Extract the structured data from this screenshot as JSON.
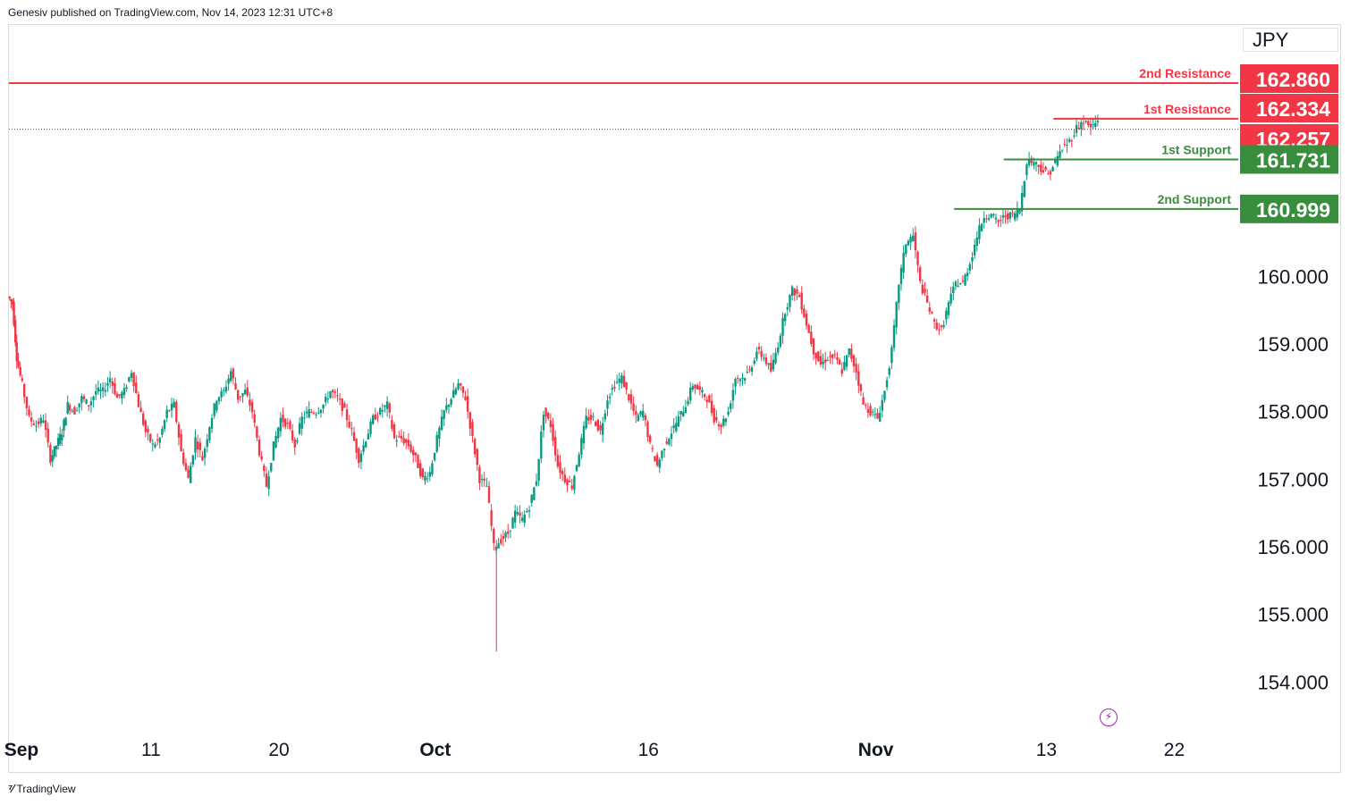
{
  "header": {
    "published": "Genesiv published on TradingView.com, Nov 14, 2023 12:31 UTC+8"
  },
  "currency": "JPY",
  "footer": {
    "brand": "TradingView",
    "logo_icon": "tradingview-logo-icon"
  },
  "colors": {
    "resistance": "#f23645",
    "support": "#388e3c",
    "bull": "#089981",
    "bear": "#f23645",
    "axis_text": "#131722"
  },
  "chart_data": {
    "type": "candlestick",
    "title": "",
    "y_axis": {
      "ticks": [
        154.0,
        155.0,
        156.0,
        157.0,
        158.0,
        159.0,
        160.0
      ],
      "ylim": [
        153.25,
        163.72
      ],
      "tick_labels": [
        "154.000",
        "155.000",
        "156.000",
        "157.000",
        "158.000",
        "159.000",
        "160.000"
      ]
    },
    "x_axis": {
      "labels": [
        {
          "text": "Sep",
          "bold": true,
          "day": 0
        },
        {
          "text": "11",
          "bold": false,
          "day": 10
        },
        {
          "text": "20",
          "bold": false,
          "day": 19
        },
        {
          "text": "Oct",
          "bold": true,
          "day": 30
        },
        {
          "text": "16",
          "bold": false,
          "day": 45
        },
        {
          "text": "Nov",
          "bold": true,
          "day": 61
        },
        {
          "text": "13",
          "bold": false,
          "day": 73
        },
        {
          "text": "22",
          "bold": false,
          "day": 82
        }
      ],
      "xlim_days": [
        0,
        86.5
      ]
    },
    "levels": [
      {
        "name": "2nd Resistance",
        "value": 162.86,
        "label": "162.860",
        "kind": "resistance",
        "full_width": true
      },
      {
        "name": "1st Resistance",
        "value": 162.334,
        "label": "162.334",
        "kind": "resistance",
        "start_day": 73.5
      },
      {
        "name": "1st Support",
        "value": 161.731,
        "label": "161.731",
        "kind": "support",
        "start_day": 70.0
      },
      {
        "name": "2nd Support",
        "value": 160.999,
        "label": "160.999",
        "kind": "support",
        "start_day": 66.5
      }
    ],
    "current_price": {
      "value": 162.257,
      "label": "162.257"
    },
    "price_path": [
      [
        0.0,
        159.7
      ],
      [
        0.3,
        159.6
      ],
      [
        0.6,
        158.8
      ],
      [
        1.0,
        158.4
      ],
      [
        1.5,
        157.9
      ],
      [
        2.0,
        157.8
      ],
      [
        2.5,
        157.9
      ],
      [
        3.0,
        157.3
      ],
      [
        3.4,
        157.5
      ],
      [
        3.8,
        157.7
      ],
      [
        4.2,
        158.1
      ],
      [
        4.7,
        158.0
      ],
      [
        5.2,
        158.2
      ],
      [
        5.7,
        158.1
      ],
      [
        6.2,
        158.3
      ],
      [
        6.7,
        158.3
      ],
      [
        7.2,
        158.5
      ],
      [
        7.7,
        158.2
      ],
      [
        8.2,
        158.3
      ],
      [
        8.7,
        158.6
      ],
      [
        9.2,
        158.1
      ],
      [
        9.7,
        157.7
      ],
      [
        10.2,
        157.5
      ],
      [
        10.7,
        157.6
      ],
      [
        11.2,
        158.0
      ],
      [
        11.7,
        158.1
      ],
      [
        12.2,
        157.4
      ],
      [
        12.7,
        157.0
      ],
      [
        13.2,
        157.6
      ],
      [
        13.7,
        157.3
      ],
      [
        14.2,
        157.8
      ],
      [
        14.7,
        158.2
      ],
      [
        15.2,
        158.3
      ],
      [
        15.7,
        158.6
      ],
      [
        16.2,
        158.2
      ],
      [
        16.7,
        158.3
      ],
      [
        17.2,
        158.0
      ],
      [
        17.7,
        157.4
      ],
      [
        18.2,
        156.9
      ],
      [
        18.7,
        157.5
      ],
      [
        19.2,
        157.9
      ],
      [
        19.7,
        157.8
      ],
      [
        20.2,
        157.5
      ],
      [
        20.7,
        157.9
      ],
      [
        21.2,
        158.0
      ],
      [
        21.7,
        158.0
      ],
      [
        22.2,
        158.1
      ],
      [
        22.7,
        158.3
      ],
      [
        23.2,
        158.2
      ],
      [
        23.7,
        158.0
      ],
      [
        24.2,
        157.7
      ],
      [
        24.7,
        157.3
      ],
      [
        25.2,
        157.6
      ],
      [
        25.7,
        157.9
      ],
      [
        26.2,
        158.0
      ],
      [
        26.7,
        158.1
      ],
      [
        27.2,
        157.6
      ],
      [
        27.7,
        157.6
      ],
      [
        28.2,
        157.5
      ],
      [
        28.7,
        157.3
      ],
      [
        29.2,
        157.0
      ],
      [
        29.7,
        157.1
      ],
      [
        30.2,
        157.6
      ],
      [
        30.7,
        158.0
      ],
      [
        31.2,
        158.2
      ],
      [
        31.7,
        158.4
      ],
      [
        32.2,
        158.2
      ],
      [
        32.7,
        157.6
      ],
      [
        33.2,
        157.0
      ],
      [
        33.7,
        156.9
      ],
      [
        34.2,
        156.0
      ],
      [
        34.7,
        156.1
      ],
      [
        35.2,
        156.2
      ],
      [
        35.7,
        156.5
      ],
      [
        36.2,
        156.4
      ],
      [
        36.7,
        156.6
      ],
      [
        37.2,
        157.0
      ],
      [
        37.7,
        158.0
      ],
      [
        38.2,
        157.8
      ],
      [
        38.7,
        157.2
      ],
      [
        39.2,
        157.0
      ],
      [
        39.7,
        156.9
      ],
      [
        40.2,
        157.4
      ],
      [
        40.7,
        157.9
      ],
      [
        41.2,
        157.9
      ],
      [
        41.7,
        157.7
      ],
      [
        42.2,
        158.2
      ],
      [
        42.7,
        158.4
      ],
      [
        43.2,
        158.5
      ],
      [
        43.7,
        158.2
      ],
      [
        44.2,
        157.9
      ],
      [
        44.7,
        158.0
      ],
      [
        45.2,
        157.5
      ],
      [
        45.7,
        157.2
      ],
      [
        46.2,
        157.5
      ],
      [
        46.7,
        157.7
      ],
      [
        47.2,
        157.9
      ],
      [
        47.7,
        158.1
      ],
      [
        48.2,
        158.4
      ],
      [
        48.7,
        158.3
      ],
      [
        49.2,
        158.2
      ],
      [
        49.7,
        157.9
      ],
      [
        50.2,
        157.8
      ],
      [
        50.7,
        158.0
      ],
      [
        51.2,
        158.5
      ],
      [
        51.7,
        158.5
      ],
      [
        52.2,
        158.6
      ],
      [
        52.7,
        158.9
      ],
      [
        53.2,
        158.8
      ],
      [
        53.7,
        158.6
      ],
      [
        54.2,
        159.0
      ],
      [
        54.7,
        159.5
      ],
      [
        55.2,
        159.8
      ],
      [
        55.7,
        159.7
      ],
      [
        56.2,
        159.3
      ],
      [
        56.7,
        158.9
      ],
      [
        57.2,
        158.7
      ],
      [
        57.7,
        158.8
      ],
      [
        58.2,
        158.8
      ],
      [
        58.7,
        158.6
      ],
      [
        59.2,
        158.9
      ],
      [
        59.7,
        158.6
      ],
      [
        60.2,
        158.1
      ],
      [
        60.7,
        158.0
      ],
      [
        61.2,
        157.9
      ],
      [
        61.7,
        158.3
      ],
      [
        62.2,
        158.9
      ],
      [
        62.7,
        159.9
      ],
      [
        63.2,
        160.5
      ],
      [
        63.7,
        160.6
      ],
      [
        64.2,
        159.9
      ],
      [
        64.7,
        159.6
      ],
      [
        65.2,
        159.3
      ],
      [
        65.7,
        159.2
      ],
      [
        66.2,
        159.6
      ],
      [
        66.7,
        159.9
      ],
      [
        67.2,
        159.9
      ],
      [
        67.7,
        160.2
      ],
      [
        68.2,
        160.6
      ],
      [
        68.7,
        160.9
      ],
      [
        69.2,
        160.9
      ],
      [
        69.7,
        160.8
      ],
      [
        70.2,
        160.9
      ],
      [
        70.7,
        160.9
      ],
      [
        71.2,
        161.0
      ],
      [
        71.7,
        161.7
      ],
      [
        72.2,
        161.7
      ],
      [
        72.7,
        161.6
      ],
      [
        73.2,
        161.5
      ],
      [
        73.7,
        161.7
      ],
      [
        74.2,
        161.9
      ],
      [
        74.7,
        162.0
      ],
      [
        75.2,
        162.2
      ],
      [
        75.7,
        162.3
      ],
      [
        76.2,
        162.2
      ],
      [
        76.7,
        162.3
      ]
    ]
  }
}
